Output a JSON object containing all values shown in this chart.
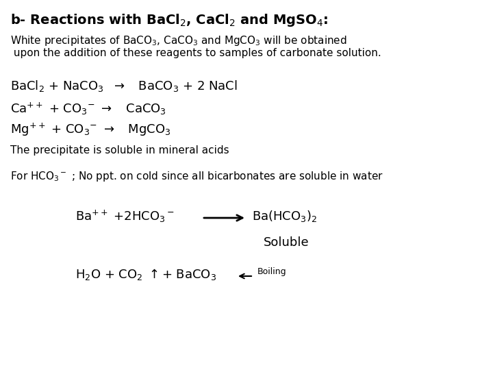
{
  "bg_color": "#ffffff",
  "text_color": "#000000",
  "figsize": [
    7.2,
    5.4
  ],
  "dpi": 100,
  "title": "b- Reactions with BaCl$_2$, CaCl$_2$ and MgSO$_4$:",
  "sub1": "White precipitates of BaCO$_3$, CaCO$_3$ and MgCO$_3$ will be obtained",
  "sub2": " upon the addition of these reagents to samples of carbonate solution.",
  "eq1": "BaCl$_2$ + NaCO$_3$  $\\rightarrow$   BaCO$_3$ + 2 NaCl",
  "eq2": "Ca$^{++}$ + CO$_3$$^{-}$ $\\rightarrow$   CaCO$_3$",
  "eq3": "Mg$^{++}$ + CO$_3$$^{-}$ $\\rightarrow$   MgCO$_3$",
  "eq4": "The precipitate is soluble in mineral acids",
  "eq5": "For HCO$_3$$^-$ ; No ppt. on cold since all bicarbonates are soluble in water",
  "eq6_left": "Ba$^{++}$ +2HCO$_3$$^-$",
  "eq6_right": "Ba(HCO$_3$)$_2$",
  "eq6_soluble": "Soluble",
  "eq7_left": "H$_2$O + CO$_2$ $\\uparrow$+ BaCO$_3$",
  "eq7_boiling": "Boiling"
}
